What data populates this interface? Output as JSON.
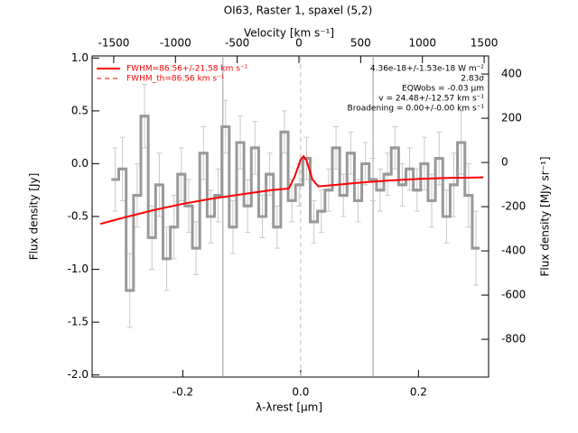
{
  "chart_data": {
    "type": "line",
    "title": "OI63, Raster 1, spaxel (5,2)",
    "x2_label": "Velocity [km s⁻¹]",
    "xlabel": "λ-λrest [μm]",
    "ylabel": "Flux density [Jy]",
    "y2label": "Flux density [MJy sr⁻¹]",
    "xlim": [
      -0.354,
      0.319
    ],
    "xticks": [
      -0.2,
      {
        "value": 0,
        "label": "0.0"
      },
      0.2
    ],
    "x2lim": [
      -1675,
      1536
    ],
    "x2ticks": [
      -1500,
      -1000,
      -500,
      0,
      500,
      1000,
      1500
    ],
    "ylim": [
      -2.02,
      1.02
    ],
    "yticks": [
      {
        "value": -2,
        "label": "-2.0"
      },
      -1.5,
      {
        "value": -1,
        "label": "-1.0"
      },
      -0.5,
      {
        "value": 0,
        "label": "0.0"
      },
      0.5,
      {
        "value": 1,
        "label": "1.0"
      }
    ],
    "y2lim": [
      -971,
      482
    ],
    "y2ticks": [
      -800,
      -600,
      -400,
      -200,
      0,
      200,
      400
    ],
    "series": [
      {
        "color": "#999999",
        "style": "step",
        "x": [
          -0.315,
          -0.3025,
          -0.29,
          -0.2775,
          -0.265,
          -0.2525,
          -0.24,
          -0.2275,
          -0.215,
          -0.2025,
          -0.19,
          -0.1775,
          -0.165,
          -0.1525,
          -0.14,
          -0.1275,
          -0.115,
          -0.1025,
          -0.09,
          -0.0775,
          -0.065,
          -0.0525,
          -0.04,
          -0.0275,
          -0.015,
          -0.0025,
          0.01,
          0.0225,
          0.035,
          0.0475,
          0.06,
          0.0725,
          0.085,
          0.0975,
          0.11,
          0.1225,
          0.135,
          0.1475,
          0.16,
          0.1725,
          0.185,
          0.1975,
          0.21,
          0.2225,
          0.235,
          0.2475,
          0.26,
          0.2725,
          0.285,
          0.2975
        ],
        "values": [
          -0.15,
          -0.05,
          -1.2,
          -0.3,
          0.45,
          -0.7,
          -0.2,
          -0.9,
          -0.6,
          -0.1,
          -0.4,
          -0.8,
          0.1,
          -0.5,
          -0.3,
          0.35,
          -0.6,
          0.2,
          -0.4,
          0.15,
          -0.5,
          -0.1,
          -0.6,
          0.3,
          -0.35,
          -0.2,
          0.05,
          -0.55,
          -0.45,
          -0.25,
          0.15,
          -0.3,
          0.1,
          -0.35,
          0.0,
          -0.15,
          -0.25,
          -0.1,
          0.15,
          -0.2,
          -0.05,
          -0.25,
          0.0,
          -0.35,
          0.05,
          -0.5,
          -0.2,
          0.2,
          -0.3,
          -0.8
        ],
        "errors": [
          0.3,
          0.3,
          0.35,
          0.3,
          0.3,
          0.3,
          0.3,
          0.3,
          0.3,
          0.25,
          0.25,
          0.25,
          0.25,
          0.25,
          0.25,
          0.25,
          0.25,
          0.25,
          0.25,
          0.25,
          0.2,
          0.2,
          0.2,
          0.2,
          0.2,
          0.2,
          0.2,
          0.2,
          0.2,
          0.2,
          0.2,
          0.2,
          0.2,
          0.2,
          0.2,
          0.2,
          0.2,
          0.2,
          0.2,
          0.2,
          0.2,
          0.2,
          0.25,
          0.25,
          0.25,
          0.25,
          0.3,
          0.3,
          0.3,
          0.35
        ]
      },
      {
        "name": "FWHM=86.56+/-21.58 km s⁻¹",
        "color": "#ff0000",
        "style": "line",
        "x": [
          -0.34,
          -0.3,
          -0.25,
          -0.2,
          -0.15,
          -0.1,
          -0.05,
          -0.02,
          -0.01,
          0.0,
          0.005,
          0.01,
          0.02,
          0.03,
          0.05,
          0.1,
          0.15,
          0.2,
          0.25,
          0.31
        ],
        "values": [
          -0.57,
          -0.51,
          -0.44,
          -0.38,
          -0.33,
          -0.29,
          -0.25,
          -0.235,
          -0.12,
          0.04,
          0.07,
          0.03,
          -0.15,
          -0.215,
          -0.205,
          -0.18,
          -0.16,
          -0.145,
          -0.135,
          -0.13
        ]
      }
    ],
    "reference_legend": {
      "label": "FWHM_th=86.56 km s⁻¹",
      "color": "#ff0000"
    },
    "vlines": [
      {
        "x": -0.132,
        "color": "#999999",
        "dashed": false
      },
      {
        "x": 0.0,
        "color": "#bbbbbb",
        "dashed": true
      },
      {
        "x": 0.123,
        "color": "#999999",
        "dashed": false
      }
    ],
    "annotations": [
      "4.36e-18+/-1.53e-18 W m⁻²",
      "2.83σ",
      "EQWobs = -0.03 μm",
      "v = 24.48+/-12.57 km s⁻¹",
      "Broadening = 0.00+/-0.00 km s⁻¹"
    ]
  }
}
